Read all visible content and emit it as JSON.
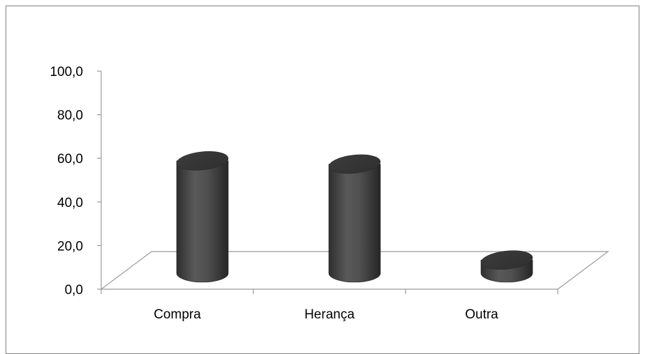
{
  "chart_data": {
    "type": "bar",
    "bar_shape": "cylinder-3d",
    "categories": [
      "Compra",
      "Herança",
      "Outra"
    ],
    "values": [
      51.5,
      50.0,
      6.0
    ],
    "ylim": [
      0,
      100
    ],
    "yticks": [
      "0,0",
      "20,0",
      "40,0",
      "60,0",
      "80,0",
      "100,0"
    ],
    "grid": false,
    "legend": "none",
    "colors": {
      "bar": "#4a4a4a",
      "bar_top": "#3a3a3a",
      "axis": "#9a9a9a",
      "text": "#000000"
    }
  }
}
